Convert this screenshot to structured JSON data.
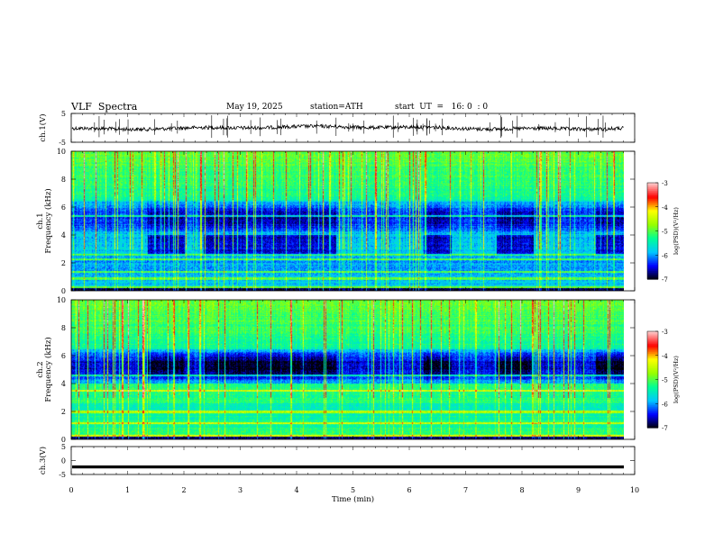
{
  "header": {
    "title": "VLF  Spectra",
    "date": "May 19, 2025",
    "station": "station=ATH",
    "start": "start  UT  =   16: 0  : 0"
  },
  "colors": {
    "trace": "#000000",
    "colormap": [
      "#000000",
      "#0000ff",
      "#00c8ff",
      "#00ff96",
      "#96ff00",
      "#ffff00",
      "#ff0000",
      "#ffc8c8"
    ]
  },
  "chart_data": [
    {
      "type": "line",
      "panel": "ch1_waveform",
      "ylabel": "ch.1(V)",
      "yticks": [
        "5",
        "-5"
      ],
      "ylim": [
        -5,
        5
      ],
      "xlim": [
        0,
        10
      ],
      "series": [
        {
          "values_description_level": 0.0,
          "noise_amplitude": 0.6
        }
      ]
    },
    {
      "type": "heatmap",
      "panel": "ch1_spectrogram",
      "ylabel_line1": "ch.1",
      "ylabel_line2": "Frequency  (kHz)",
      "yticks": [
        "0",
        "2",
        "4",
        "6",
        "8",
        "10"
      ],
      "ylim": [
        0,
        10
      ],
      "xlim": [
        0,
        10
      ],
      "colorbar": {
        "label": "log(PSD)(V²/Hz)",
        "ticks": [
          "-3",
          "-4",
          "-5",
          "-6",
          "-7"
        ],
        "range": [
          -7,
          -3
        ]
      },
      "quiet_intervals_min": [
        [
          1.35,
          2.0
        ],
        [
          2.35,
          4.7
        ],
        [
          6.25,
          6.75
        ],
        [
          7.55,
          8.2
        ],
        [
          9.3,
          9.8
        ]
      ],
      "bright_lines_khz": [
        0.3,
        0.9,
        1.4,
        2.3,
        2.6,
        5.4
      ]
    },
    {
      "type": "heatmap",
      "panel": "ch2_spectrogram",
      "ylabel_line1": "ch.2",
      "ylabel_line2": "Frequency  (kHz)",
      "yticks": [
        "0",
        "2",
        "4",
        "6",
        "8",
        "10"
      ],
      "ylim": [
        0,
        10
      ],
      "xlim": [
        0,
        10
      ],
      "colorbar": {
        "label": "log(PSD)(V²/Hz)",
        "ticks": [
          "-3",
          "-4",
          "-5",
          "-6",
          "-7"
        ],
        "range": [
          -7,
          -3
        ]
      },
      "bright_lines_khz": [
        0.3,
        1.2,
        2.0,
        3.5,
        4.6
      ]
    },
    {
      "type": "line",
      "panel": "ch3_waveform",
      "ylabel": "ch.3(V)",
      "yticks": [
        "5",
        "0",
        "-5"
      ],
      "ylim": [
        -5,
        5
      ],
      "xlim": [
        0,
        10
      ],
      "xlabel": "Time  (min)",
      "xticks": [
        "0",
        "1",
        "2",
        "3",
        "4",
        "5",
        "6",
        "7",
        "8",
        "9",
        "10"
      ],
      "series": [
        {
          "constant_value": -2.3
        }
      ]
    }
  ]
}
